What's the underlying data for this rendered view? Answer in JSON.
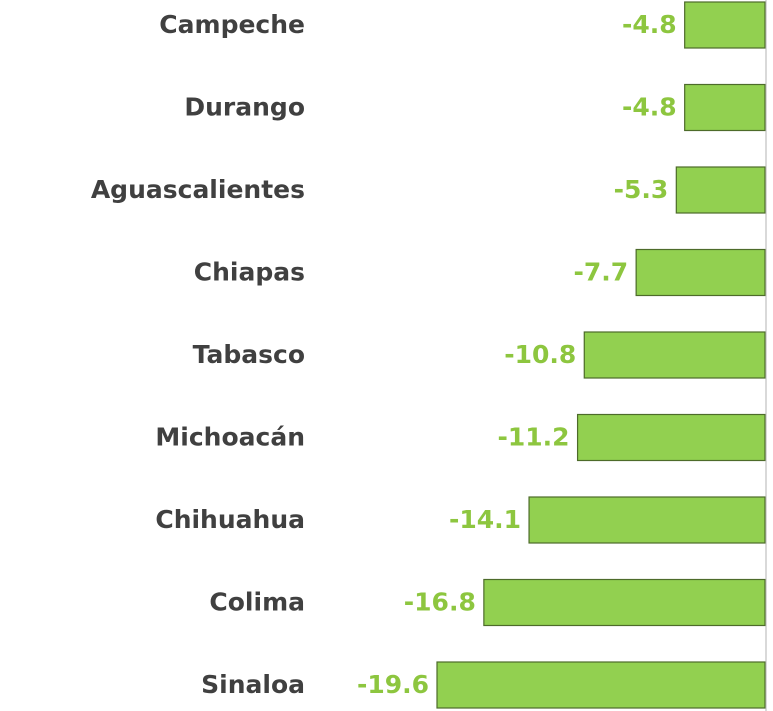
{
  "chart_data": {
    "type": "bar",
    "orientation": "horizontal",
    "categories": [
      "Campeche",
      "Durango",
      "Aguascalientes",
      "Chiapas",
      "Tabasco",
      "Michoacán",
      "Chihuahua",
      "Colima",
      "Sinaloa"
    ],
    "values": [
      -4.8,
      -4.8,
      -5.3,
      -7.7,
      -10.8,
      -11.2,
      -14.1,
      -16.8,
      -19.6
    ],
    "color": "#92d050"
  }
}
